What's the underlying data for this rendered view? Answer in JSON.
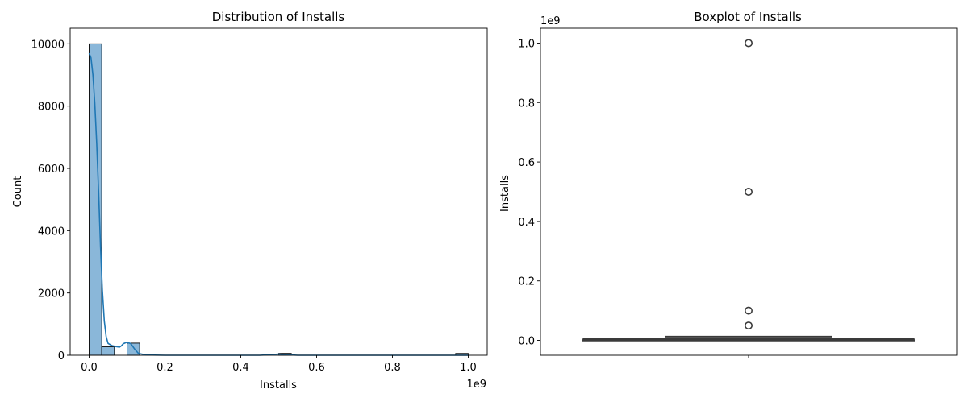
{
  "chart_data": [
    {
      "type": "bar",
      "title": "Distribution of Installs",
      "xlabel": "Installs",
      "ylabel": "Count",
      "x_offset_text": "1e9",
      "xlim": [
        -0.05,
        1.05
      ],
      "ylim": [
        0,
        10500
      ],
      "x_ticks": [
        0.0,
        0.2,
        0.4,
        0.6,
        0.8,
        1.0
      ],
      "x_tick_labels": [
        "0.0",
        "0.2",
        "0.4",
        "0.6",
        "0.8",
        "1.0"
      ],
      "y_ticks": [
        0,
        2000,
        4000,
        6000,
        8000,
        10000
      ],
      "y_tick_labels": [
        "0",
        "2000",
        "4000",
        "6000",
        "8000",
        "10000"
      ],
      "bin_width": 0.0333,
      "bins": [
        {
          "x": 0.0,
          "count": 10000
        },
        {
          "x": 0.0333,
          "count": 270
        },
        {
          "x": 0.1,
          "count": 390
        },
        {
          "x": 0.5,
          "count": 60
        },
        {
          "x": 0.9667,
          "count": 58
        }
      ],
      "kde": [
        [
          0.0,
          9700
        ],
        [
          0.005,
          9550
        ],
        [
          0.01,
          9000
        ],
        [
          0.015,
          8100
        ],
        [
          0.02,
          6800
        ],
        [
          0.025,
          5200
        ],
        [
          0.03,
          3500
        ],
        [
          0.035,
          2100
        ],
        [
          0.04,
          1100
        ],
        [
          0.045,
          600
        ],
        [
          0.05,
          380
        ],
        [
          0.06,
          310
        ],
        [
          0.07,
          280
        ],
        [
          0.08,
          260
        ],
        [
          0.085,
          300
        ],
        [
          0.09,
          370
        ],
        [
          0.1,
          420
        ],
        [
          0.11,
          370
        ],
        [
          0.12,
          200
        ],
        [
          0.13,
          60
        ],
        [
          0.15,
          10
        ],
        [
          0.2,
          0
        ],
        [
          0.45,
          0
        ],
        [
          0.48,
          20
        ],
        [
          0.5,
          40
        ],
        [
          0.52,
          20
        ],
        [
          0.55,
          0
        ],
        [
          0.95,
          0
        ],
        [
          1.0,
          0
        ]
      ],
      "bar_color": "#8ab7d9",
      "kde_color": "#1f77b4",
      "grid": false
    },
    {
      "type": "boxplot",
      "title": "Boxplot of Installs",
      "ylabel": "Installs",
      "y_offset_text": "1e9",
      "ylim": [
        -0.05,
        1.05
      ],
      "y_ticks": [
        0.0,
        0.2,
        0.4,
        0.6,
        0.8,
        1.0
      ],
      "y_tick_labels": [
        "0.0",
        "0.2",
        "0.4",
        "0.6",
        "0.8",
        "1.0"
      ],
      "box": {
        "whisker_low": 0.0,
        "q1": 0.0,
        "median": 0.0,
        "q3": 0.005,
        "whisker_high": 0.0125
      },
      "outliers": [
        0.05,
        0.1,
        0.5,
        1.0
      ],
      "color": "#3b3b3b",
      "grid": false
    }
  ]
}
